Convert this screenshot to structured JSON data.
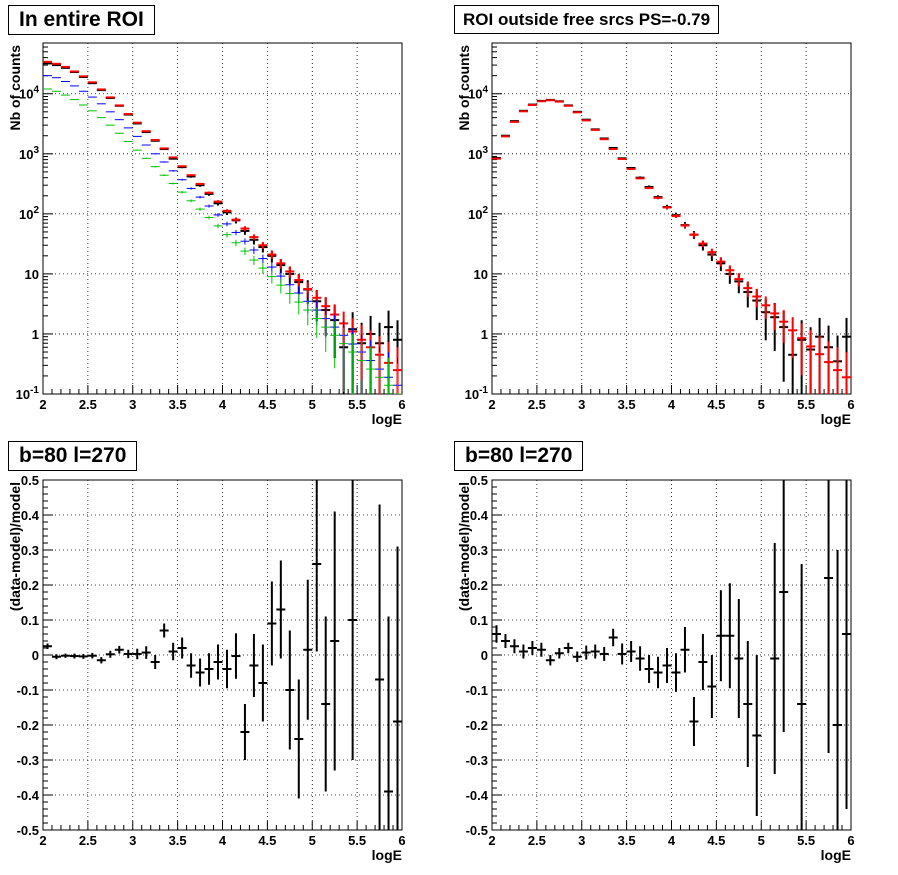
{
  "colors": {
    "data": "#000000",
    "total_model": "#ff0000",
    "blue_model": "#0000ff",
    "green_model": "#00c000"
  },
  "chart_data": [
    {
      "type": "line",
      "title": "In entire ROI",
      "xlabel": "logE",
      "ylabel": "Nb of counts",
      "xlim": [
        2,
        6
      ],
      "ylim": [
        0.1,
        70000
      ],
      "yscale": "log",
      "grid": true,
      "xticks": [
        "2",
        "2.5",
        "3",
        "3.5",
        "4",
        "4.5",
        "5",
        "5.5",
        "6"
      ],
      "yticks": [
        "10^-1",
        "1",
        "10",
        "10^2",
        "10^3",
        "10^4"
      ],
      "bin_width": 0.1,
      "x": [
        2.05,
        2.15,
        2.25,
        2.35,
        2.45,
        2.55,
        2.65,
        2.75,
        2.85,
        2.95,
        3.05,
        3.15,
        3.25,
        3.35,
        3.45,
        3.55,
        3.65,
        3.75,
        3.85,
        3.95,
        4.05,
        4.15,
        4.25,
        4.35,
        4.45,
        4.55,
        4.65,
        4.75,
        4.85,
        4.95,
        5.05,
        5.15,
        5.25,
        5.35,
        5.45,
        5.55,
        5.65,
        5.75,
        5.85,
        5.95
      ],
      "series": [
        {
          "color": "black",
          "style": "data",
          "values": [
            32000,
            30000,
            27000,
            23000,
            19000,
            15000,
            11500,
            8500,
            6300,
            4500,
            3200,
            2300,
            1650,
            1200,
            830,
            600,
            420,
            300,
            215,
            150,
            106,
            78,
            52,
            37,
            28,
            20,
            14,
            10,
            7.3,
            5.5,
            3.5,
            2.5,
            1.7,
            0.6,
            1.2,
            0.7,
            1.0,
            0.7,
            1.3,
            0.8
          ]
        },
        {
          "color": "red",
          "style": "model",
          "values": [
            34000,
            31500,
            28000,
            23500,
            19500,
            15500,
            11800,
            8700,
            6400,
            4600,
            3300,
            2380,
            1700,
            1230,
            870,
            620,
            440,
            315,
            225,
            160,
            112,
            80,
            57,
            41,
            30,
            21,
            15,
            11,
            7.9,
            5.6,
            4.0,
            2.9,
            2.1,
            1.5,
            1.1,
            0.8,
            0.6,
            0.45,
            0.33,
            0.25
          ]
        },
        {
          "color": "blue",
          "style": "model",
          "values": [
            20000,
            18500,
            16000,
            13500,
            11000,
            8800,
            6800,
            5000,
            3700,
            2700,
            1950,
            1400,
            1000,
            730,
            520,
            370,
            265,
            190,
            135,
            96,
            68,
            49,
            35,
            25,
            18,
            13,
            9.2,
            6.6,
            4.8,
            3.5,
            2.5,
            1.8,
            1.3,
            0.95,
            0.68,
            0.5,
            0.36,
            0.26,
            0.19,
            0.14
          ]
        },
        {
          "color": "green",
          "style": "model",
          "values": [
            12000,
            11000,
            9500,
            8000,
            6500,
            5200,
            4000,
            3000,
            2200,
            1600,
            1150,
            840,
            610,
            440,
            320,
            230,
            165,
            120,
            87,
            63,
            45,
            33,
            24,
            17,
            12.5,
            9,
            6.5,
            4.7,
            3.4,
            2.5,
            1.8,
            1.3,
            0.95,
            0.69,
            0.5,
            0.36,
            0.26,
            0.19,
            0.14,
            0.1
          ]
        }
      ]
    },
    {
      "type": "line",
      "title": "ROI outside free srcs PS=-0.79",
      "xlabel": "logE",
      "ylabel": "Nb of counts",
      "xlim": [
        2,
        6
      ],
      "ylim": [
        0.1,
        70000
      ],
      "yscale": "log",
      "grid": true,
      "xticks": [
        "2",
        "2.5",
        "3",
        "3.5",
        "4",
        "4.5",
        "5",
        "5.5",
        "6"
      ],
      "yticks": [
        "10^-1",
        "1",
        "10",
        "10^2",
        "10^3",
        "10^4"
      ],
      "bin_width": 0.1,
      "x": [
        2.05,
        2.15,
        2.25,
        2.35,
        2.45,
        2.55,
        2.65,
        2.75,
        2.85,
        2.95,
        3.05,
        3.15,
        3.25,
        3.35,
        3.45,
        3.55,
        3.65,
        3.75,
        3.85,
        3.95,
        4.05,
        4.15,
        4.25,
        4.35,
        4.45,
        4.55,
        4.65,
        4.75,
        4.85,
        4.95,
        5.05,
        5.15,
        5.25,
        5.35,
        5.45,
        5.55,
        5.65,
        5.75,
        5.85,
        5.95
      ],
      "series": [
        {
          "color": "black",
          "style": "data",
          "values": [
            850,
            2000,
            3500,
            5200,
            6600,
            7600,
            7900,
            7500,
            6400,
            5000,
            3700,
            2550,
            1800,
            1250,
            840,
            580,
            400,
            280,
            190,
            130,
            95,
            65,
            45,
            30,
            21,
            15,
            10,
            7.5,
            5,
            3.6,
            2.3,
            1.9,
            1.3,
            0.45,
            0.8,
            0.55,
            0.9,
            0.6,
            0.35,
            0.9
          ]
        },
        {
          "color": "red",
          "style": "model",
          "values": [
            830,
            1950,
            3400,
            5100,
            6500,
            7500,
            7800,
            7400,
            6300,
            4900,
            3600,
            2500,
            1750,
            1200,
            820,
            560,
            390,
            270,
            185,
            128,
            92,
            64,
            45,
            32,
            23,
            16,
            11.5,
            8.2,
            5.8,
            4.2,
            3.0,
            2.2,
            1.6,
            1.15,
            0.85,
            0.62,
            0.46,
            0.34,
            0.25,
            0.19
          ]
        }
      ]
    },
    {
      "type": "scatter",
      "title": "b=80 l=270",
      "xlabel": "logE",
      "ylabel": "(data-model)/model",
      "xlim": [
        2,
        6
      ],
      "ylim": [
        -0.5,
        0.5
      ],
      "grid": true,
      "xticks": [
        "2",
        "2.5",
        "3",
        "3.5",
        "4",
        "4.5",
        "5",
        "5.5",
        "6"
      ],
      "yticks": [
        "-0.5",
        "-0.4",
        "-0.3",
        "-0.2",
        "-0.1",
        "0",
        "0.1",
        "0.2",
        "0.3",
        "0.4",
        "0.5"
      ],
      "bin_width": 0.1,
      "x": [
        2.05,
        2.15,
        2.25,
        2.35,
        2.45,
        2.55,
        2.65,
        2.75,
        2.85,
        2.95,
        3.05,
        3.15,
        3.25,
        3.35,
        3.45,
        3.55,
        3.65,
        3.75,
        3.85,
        3.95,
        4.05,
        4.15,
        4.25,
        4.35,
        4.45,
        4.55,
        4.65,
        4.75,
        4.85,
        4.95,
        5.05,
        5.15,
        5.25,
        5.35,
        5.45,
        5.55,
        5.65,
        5.75,
        5.85,
        5.95
      ],
      "series": [
        {
          "color": "black",
          "values": [
            0.025,
            -0.005,
            -0.002,
            -0.003,
            -0.004,
            -0.002,
            -0.015,
            0.002,
            0.015,
            0.003,
            0.003,
            0.007,
            -0.02,
            0.07,
            0.01,
            0.02,
            -0.03,
            -0.05,
            -0.04,
            -0.02,
            -0.04,
            -0.003,
            -0.22,
            -0.03,
            -0.08,
            0.09,
            0.13,
            -0.1,
            -0.24,
            0.015,
            0.26,
            -0.14,
            0.04,
            null,
            0.1,
            null,
            null,
            -0.07,
            -0.39,
            -0.19
          ],
          "errors": [
            0.008,
            0.007,
            0.006,
            0.007,
            0.007,
            0.008,
            0.009,
            0.01,
            0.011,
            0.012,
            0.015,
            0.018,
            0.02,
            0.02,
            0.025,
            0.03,
            0.035,
            0.04,
            0.045,
            0.05,
            0.055,
            0.065,
            0.08,
            0.09,
            0.11,
            0.12,
            0.14,
            0.17,
            0.17,
            0.2,
            0.25,
            0.25,
            0.37,
            0.4,
            0.4,
            0.5,
            0.5,
            0.5,
            0.5,
            0.5
          ]
        }
      ]
    },
    {
      "type": "scatter",
      "title": "b=80 l=270",
      "xlabel": "logE",
      "ylabel": "(data-model)/model",
      "xlim": [
        2,
        6
      ],
      "ylim": [
        -0.5,
        0.5
      ],
      "grid": true,
      "xticks": [
        "2",
        "2.5",
        "3",
        "3.5",
        "4",
        "4.5",
        "5",
        "5.5",
        "6"
      ],
      "yticks": [
        "-0.5",
        "-0.4",
        "-0.3",
        "-0.2",
        "-0.1",
        "0",
        "0.1",
        "0.2",
        "0.3",
        "0.4",
        "0.5"
      ],
      "bin_width": 0.1,
      "x": [
        2.05,
        2.15,
        2.25,
        2.35,
        2.45,
        2.55,
        2.65,
        2.75,
        2.85,
        2.95,
        3.05,
        3.15,
        3.25,
        3.35,
        3.45,
        3.55,
        3.65,
        3.75,
        3.85,
        3.95,
        4.05,
        4.15,
        4.25,
        4.35,
        4.45,
        4.55,
        4.65,
        4.75,
        4.85,
        4.95,
        5.05,
        5.15,
        5.25,
        5.35,
        5.45,
        5.55,
        5.65,
        5.75,
        5.85,
        5.95
      ],
      "series": [
        {
          "color": "black",
          "values": [
            0.06,
            0.04,
            0.025,
            0.01,
            0.02,
            0.015,
            -0.015,
            0.005,
            0.02,
            -0.005,
            0.007,
            0.01,
            0.003,
            0.05,
            0.003,
            0.01,
            -0.01,
            -0.04,
            -0.05,
            -0.03,
            -0.05,
            0.015,
            -0.19,
            -0.02,
            -0.09,
            0.055,
            0.055,
            -0.01,
            -0.14,
            -0.23,
            null,
            -0.01,
            0.18,
            null,
            -0.14,
            null,
            null,
            0.22,
            -0.2,
            0.06
          ],
          "errors": [
            0.025,
            0.02,
            0.02,
            0.02,
            0.02,
            0.02,
            0.015,
            0.015,
            0.015,
            0.015,
            0.02,
            0.02,
            0.02,
            0.025,
            0.03,
            0.03,
            0.035,
            0.04,
            0.045,
            0.05,
            0.055,
            0.065,
            0.07,
            0.08,
            0.09,
            0.13,
            0.15,
            0.17,
            0.18,
            0.23,
            0.3,
            0.33,
            0.4,
            0.45,
            0.4,
            0.5,
            0.5,
            0.5,
            0.5,
            0.5
          ]
        }
      ]
    }
  ]
}
